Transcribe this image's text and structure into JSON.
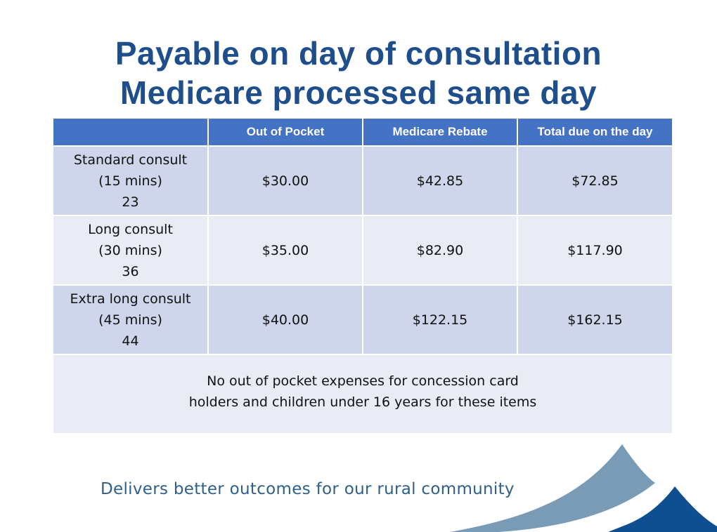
{
  "title": {
    "line1": "Payable on day of consultation",
    "line2": "Medicare processed same day"
  },
  "table": {
    "headers": [
      "",
      "Out of Pocket",
      "Medicare Rebate",
      "Total due on the day"
    ],
    "rows": [
      {
        "name": "Standard consult",
        "duration": "(15 mins)",
        "item": "23",
        "out_of_pocket": "$30.00",
        "rebate": "$42.85",
        "total": "$72.85"
      },
      {
        "name": "Long consult",
        "duration": "(30 mins)",
        "item": "36",
        "out_of_pocket": "$35.00",
        "rebate": "$82.90",
        "total": "$117.90"
      },
      {
        "name": "Extra long consult",
        "duration": "(45 mins)",
        "item": "44",
        "out_of_pocket": "$40.00",
        "rebate": "$122.15",
        "total": "$162.15"
      }
    ],
    "note": {
      "line1": "No out of pocket expenses for concession card",
      "line2": "holders and children under 16 years for these items"
    }
  },
  "footer": {
    "tagline": "Delivers better outcomes for our rural community"
  },
  "colors": {
    "title": "#1f4e8c",
    "header_bg": "#4472c4",
    "row_dark": "#cfd5ea",
    "row_light": "#e9ebf5",
    "swoosh_light": "#7a9bb5",
    "swoosh_dark": "#0f4f91"
  }
}
